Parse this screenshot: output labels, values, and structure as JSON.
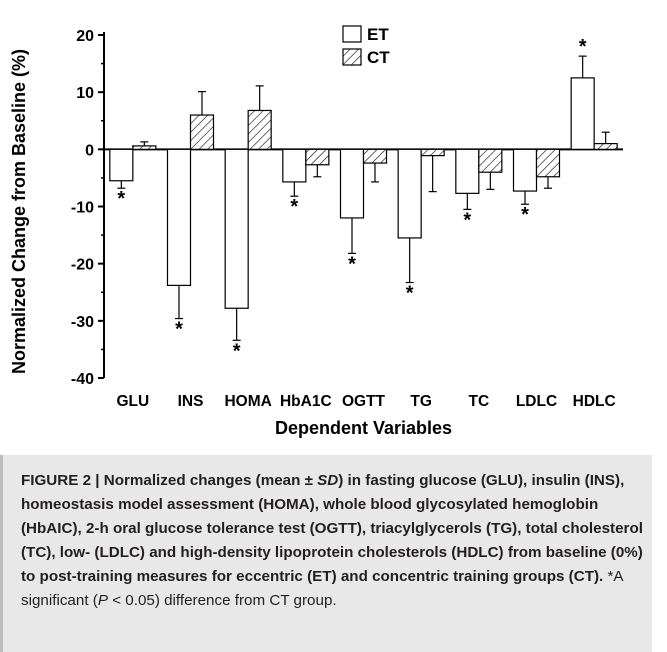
{
  "chart_data": {
    "type": "bar",
    "categories": [
      "GLU",
      "INS",
      "HOMA",
      "HbA1C",
      "OGTT",
      "TG",
      "TC",
      "LDLC",
      "HDLC"
    ],
    "series": [
      {
        "name": "ET",
        "values": [
          -5.5,
          -23.8,
          -27.8,
          -5.7,
          -12.0,
          -15.5,
          -7.7,
          -7.3,
          12.5
        ],
        "sd": [
          1.3,
          5.8,
          5.6,
          2.5,
          6.2,
          7.8,
          2.8,
          2.3,
          3.8
        ],
        "fill": "#ffffff"
      },
      {
        "name": "CT",
        "values": [
          0.6,
          6.0,
          6.8,
          -2.7,
          -2.4,
          -1.1,
          -4.0,
          -4.8,
          1.0
        ],
        "sd": [
          0.7,
          4.1,
          4.3,
          2.1,
          3.3,
          6.3,
          3.0,
          2.0,
          2.0
        ],
        "fill": "hatched"
      }
    ],
    "significant": [
      "ET",
      "ET",
      "ET",
      "ET",
      "ET",
      "ET",
      "ET",
      "ET",
      "ET"
    ],
    "significance_marker": "*",
    "yticks": [
      "20",
      "10",
      "0",
      "-10",
      "-20",
      "-30",
      "-40"
    ],
    "ytick_values": [
      20,
      10,
      0,
      -10,
      -20,
      -30,
      -40
    ],
    "ylim": [
      -40,
      20
    ],
    "xlabel": "Dependent Variables",
    "ylabel": "Normalized Change from Baseline (%)",
    "legend_placement": "top-center",
    "legend": [
      "ET",
      "CT"
    ]
  },
  "caption": {
    "figure_label": "FIGURE 2 | Normalized changes (mean ± ",
    "sd": "SD",
    "body": ") in fasting glucose (GLU), insulin (INS), homeostasis model assessment (HOMA), whole blood glycosylated hemoglobin (HbAIC), 2-h oral glucose tolerance test (OGTT), triacylglycerols (TG), total cholesterol (TC), low- (LDLC) and high-density lipoprotein cholesterols (HDLC) from baseline (0%) to post-training measures for eccentric (ET) and concentric training groups (CT).",
    "note_a": " *A significant (",
    "p": "P",
    "note_b": " < 0.05) difference from CT group."
  }
}
